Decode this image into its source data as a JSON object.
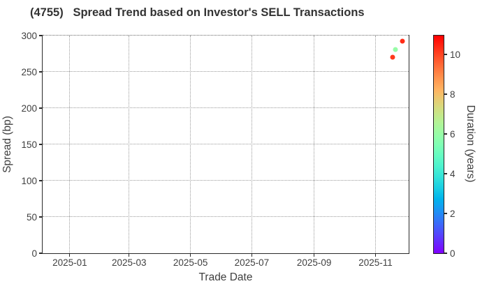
{
  "title": "(4755)   Spread Trend based on Investor's SELL Transactions",
  "chart_data": {
    "type": "scatter",
    "title": "(4755)   Spread Trend based on Investor's SELL Transactions",
    "xlabel": "Trade Date",
    "ylabel": "Spread (bp)",
    "ylim": [
      0,
      300
    ],
    "y_ticks": [
      0,
      50,
      100,
      150,
      200,
      250,
      300
    ],
    "x_domain": [
      "2024-12-05",
      "2025-12-04"
    ],
    "x_ticks": [
      {
        "label": "2025-01",
        "date": "2025-01-01"
      },
      {
        "label": "2025-03",
        "date": "2025-03-01"
      },
      {
        "label": "2025-05",
        "date": "2025-05-01"
      },
      {
        "label": "2025-07",
        "date": "2025-07-01"
      },
      {
        "label": "2025-09",
        "date": "2025-09-01"
      },
      {
        "label": "2025-11",
        "date": "2025-11-01"
      }
    ],
    "grid": "dotted",
    "legend_position": "none",
    "points": [
      {
        "date": "2025-11-18",
        "spread": 270,
        "duration": 10.2
      },
      {
        "date": "2025-11-21",
        "spread": 281,
        "duration": 6.0
      },
      {
        "date": "2025-11-28",
        "spread": 292,
        "duration": 10.4
      }
    ],
    "colorbar": {
      "label": "Duration (years)",
      "min": 0,
      "max": 11,
      "ticks": [
        0,
        2,
        4,
        6,
        8,
        10
      ],
      "colormap": "rainbow"
    }
  },
  "colors": {
    "background": "#ffffff",
    "text": "#3f3f3f",
    "title_text": "#333333",
    "spine": "#2a2a2a",
    "grid": "#9a9a9a",
    "point_red_orange": "#ff3a1d",
    "point_light_green": "#96fca7"
  }
}
